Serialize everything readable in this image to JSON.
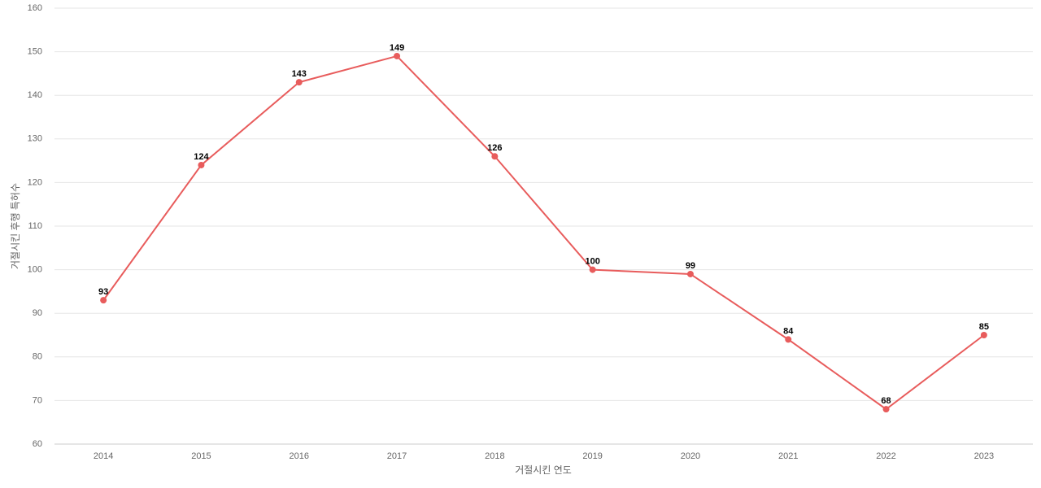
{
  "chart_data": {
    "type": "line",
    "x_label": "거절시킨 연도",
    "y_label": "거절시킨 후행 특허수",
    "categories": [
      "2014",
      "2015",
      "2016",
      "2017",
      "2018",
      "2019",
      "2020",
      "2021",
      "2022",
      "2023"
    ],
    "values": [
      93,
      124,
      143,
      149,
      126,
      100,
      99,
      84,
      68,
      85
    ],
    "color": "#e85c5c",
    "ylim": [
      60,
      160
    ],
    "yticks": [
      60,
      70,
      80,
      90,
      100,
      110,
      120,
      130,
      140,
      150,
      160
    ],
    "grid": true
  }
}
